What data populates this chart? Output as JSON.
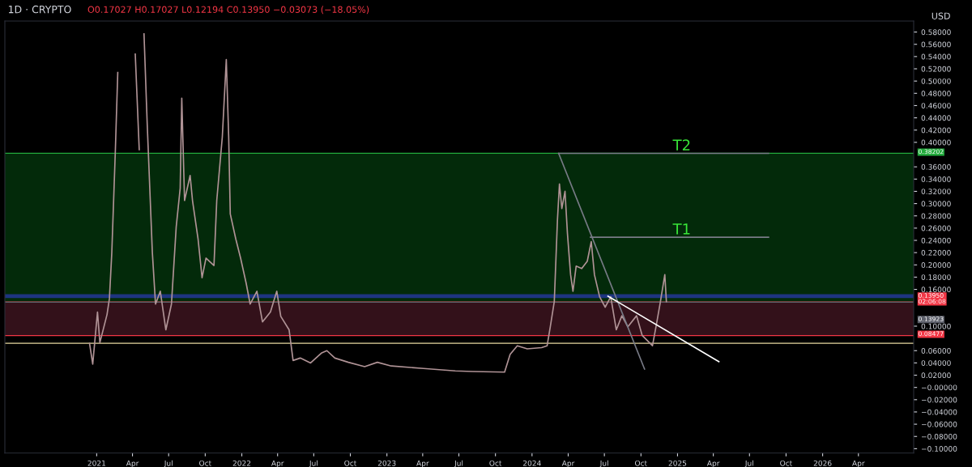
{
  "chart_data": {
    "type": "line",
    "title": "1D · CRYPTO",
    "subtitle": "O0.17027 H0.17027 L0.12194 C0.13950 −0.03073 (−18.05%)",
    "ylabel": "USD",
    "series": [
      {
        "color": "#b09396",
        "x": [
          "2020-12-14",
          "2020-12-22",
          "2021-01-03",
          "2021-01-09",
          "2021-01-27",
          "2021-02-02",
          "2021-02-08",
          "2021-02-17",
          "2021-02-23",
          "2021-03-01",
          "2021-04-08",
          "2021-04-18",
          "2021-04-24",
          "2021-04-30",
          "2021-05-08",
          "2021-05-21",
          "2021-05-29",
          "2021-06-10",
          "2021-06-24",
          "2021-07-08",
          "2021-07-20",
          "2021-07-30",
          "2021-08-03",
          "2021-08-10",
          "2021-08-24",
          "2021-08-30",
          "2021-09-13",
          "2021-09-23",
          "2021-10-03",
          "2021-10-23",
          "2021-10-30",
          "2021-11-13",
          "2021-11-23",
          "2021-11-29",
          "2021-12-03",
          "2021-12-17",
          "2021-12-29",
          "2022-01-12",
          "2022-01-22",
          "2022-02-08",
          "2022-02-22",
          "2022-03-14",
          "2022-03-30",
          "2022-04-09",
          "2022-04-30",
          "2022-05-10",
          "2022-05-28",
          "2022-06-23",
          "2022-07-20",
          "2022-08-03",
          "2022-08-23",
          "2022-09-26",
          "2022-11-06",
          "2022-12-08",
          "2023-01-12",
          "2023-04-03",
          "2023-06-22",
          "2023-08-04",
          "2023-10-24",
          "2023-11-07",
          "2023-11-25",
          "2023-12-20",
          "2024-01-25",
          "2024-02-08",
          "2024-02-16",
          "2024-02-26",
          "2024-03-05",
          "2024-03-10",
          "2024-03-16",
          "2024-03-24",
          "2024-03-30",
          "2024-04-07",
          "2024-04-13",
          "2024-04-21",
          "2024-05-05",
          "2024-05-19",
          "2024-05-29",
          "2024-06-06",
          "2024-06-19",
          "2024-07-03",
          "2024-07-17",
          "2024-07-31",
          "2024-08-14",
          "2024-08-29",
          "2024-09-20",
          "2024-10-04",
          "2024-10-30",
          "2024-11-09",
          "2024-11-19",
          "2024-11-30",
          "2024-12-04"
        ],
        "values": [
          0.072,
          0.038,
          0.123,
          0.073,
          0.119,
          0.145,
          0.22,
          0.388,
          0.514,
          null,
          0.544,
          0.388,
          null,
          0.577,
          0.431,
          0.22,
          0.136,
          0.157,
          0.094,
          0.136,
          0.262,
          0.325,
          0.472,
          0.305,
          0.346,
          0.305,
          0.242,
          0.179,
          0.211,
          0.199,
          0.305,
          0.409,
          0.535,
          0.409,
          0.283,
          0.242,
          0.211,
          0.17,
          0.136,
          0.157,
          0.107,
          0.123,
          0.157,
          0.116,
          0.094,
          0.044,
          0.048,
          0.04,
          0.056,
          0.06,
          0.048,
          0.041,
          0.034,
          0.041,
          0.035,
          0.031,
          0.027,
          0.026,
          0.025,
          0.054,
          0.068,
          0.063,
          0.065,
          0.068,
          0.099,
          0.14,
          0.274,
          0.332,
          0.292,
          0.32,
          0.252,
          0.184,
          0.157,
          0.198,
          0.194,
          0.206,
          0.238,
          0.184,
          0.148,
          0.131,
          0.148,
          0.094,
          0.117,
          0.099,
          0.117,
          0.085,
          0.068,
          0.103,
          0.14,
          0.184,
          0.14
        ]
      },
      {
        "type": "line",
        "color": "#787b86",
        "x": [
          "2024-03-08",
          "2024-10-10"
        ],
        "values": [
          0.382,
          0.03
        ]
      },
      {
        "type": "line",
        "color": "#ffffff",
        "x": [
          "2024-07-10",
          "2025-04-15"
        ],
        "values": [
          0.149,
          0.042
        ]
      },
      {
        "type": "line",
        "color": "#787b86",
        "x": [
          "2024-03-08",
          "2025-08-18"
        ],
        "values": [
          0.382,
          0.382
        ]
      },
      {
        "type": "line",
        "color": "#787b86",
        "x": [
          "2024-05-27",
          "2025-08-18"
        ],
        "values": [
          0.245,
          0.245
        ]
      }
    ],
    "bands": [
      {
        "axis": "y",
        "from": 0.13923,
        "to": 0.38202,
        "color": "#032a0a"
      },
      {
        "axis": "y",
        "from": 0.08477,
        "to": 0.13923,
        "color": "#33111a"
      },
      {
        "axis": "y",
        "from": 0.146,
        "to": 0.152,
        "color": "#1e3580"
      }
    ],
    "ref_lines": [
      {
        "axis": "y",
        "value": 0.072,
        "color": "#e8d9a0"
      },
      {
        "axis": "y",
        "value": 0.38202,
        "label": "0.38202",
        "color": "#22ab3c"
      },
      {
        "axis": "y",
        "value": 0.1395,
        "label": "0.13950\n02:06:08",
        "color": "#f23645"
      },
      {
        "axis": "y",
        "value": 0.13923,
        "label": "0.13923",
        "color": "#5d606b"
      },
      {
        "axis": "y",
        "value": 0.08477,
        "label": "0.08477",
        "color": "#f23645"
      }
    ],
    "annotations": [
      {
        "text": "T2",
        "x": "2024-12-20",
        "y": 0.382
      },
      {
        "text": "T1",
        "x": "2024-12-20",
        "y": 0.245
      }
    ],
    "xlim": [
      "2020-05-15",
      "2026-08-18"
    ],
    "xticks": [
      {
        "value": "2021-01-01",
        "label": "2021"
      },
      {
        "value": "2021-04-01",
        "label": "Apr"
      },
      {
        "value": "2021-07-01",
        "label": "Jul"
      },
      {
        "value": "2021-10-01",
        "label": "Oct"
      },
      {
        "value": "2022-01-01",
        "label": "2022"
      },
      {
        "value": "2022-04-01",
        "label": "Apr"
      },
      {
        "value": "2022-07-01",
        "label": "Jul"
      },
      {
        "value": "2022-10-01",
        "label": "Oct"
      },
      {
        "value": "2023-01-01",
        "label": "2023"
      },
      {
        "value": "2023-04-01",
        "label": "Apr"
      },
      {
        "value": "2023-07-01",
        "label": "Jul"
      },
      {
        "value": "2023-10-01",
        "label": "Oct"
      },
      {
        "value": "2024-01-01",
        "label": "2024"
      },
      {
        "value": "2024-04-01",
        "label": "Apr"
      },
      {
        "value": "2024-07-01",
        "label": "Jul"
      },
      {
        "value": "2024-10-01",
        "label": "Oct"
      },
      {
        "value": "2025-01-01",
        "label": "2025"
      },
      {
        "value": "2025-04-01",
        "label": "Apr"
      },
      {
        "value": "2025-07-01",
        "label": "Jul"
      },
      {
        "value": "2025-10-01",
        "label": "Oct"
      },
      {
        "value": "2026-01-01",
        "label": "2026"
      },
      {
        "value": "2026-04-01",
        "label": "Apr"
      }
    ],
    "ylim": [
      -0.107,
      0.598
    ],
    "yticks": [
      {
        "value": 0.58,
        "label": "0.58000"
      },
      {
        "value": 0.56,
        "label": "0.56000"
      },
      {
        "value": 0.54,
        "label": "0.54000"
      },
      {
        "value": 0.52,
        "label": "0.52000"
      },
      {
        "value": 0.5,
        "label": "0.50000"
      },
      {
        "value": 0.48,
        "label": "0.48000"
      },
      {
        "value": 0.46,
        "label": "0.46000"
      },
      {
        "value": 0.44,
        "label": "0.44000"
      },
      {
        "value": 0.42,
        "label": "0.42000"
      },
      {
        "value": 0.4,
        "label": "0.40000"
      },
      {
        "value": 0.36,
        "label": "0.36000"
      },
      {
        "value": 0.34,
        "label": "0.34000"
      },
      {
        "value": 0.32,
        "label": "0.32000"
      },
      {
        "value": 0.3,
        "label": "0.30000"
      },
      {
        "value": 0.28,
        "label": "0.28000"
      },
      {
        "value": 0.26,
        "label": "0.26000"
      },
      {
        "value": 0.24,
        "label": "0.24000"
      },
      {
        "value": 0.22,
        "label": "0.22000"
      },
      {
        "value": 0.2,
        "label": "0.20000"
      },
      {
        "value": 0.18,
        "label": "0.18000"
      },
      {
        "value": 0.16,
        "label": "0.16000"
      },
      {
        "value": 0.1,
        "label": "0.10000"
      },
      {
        "value": 0.06,
        "label": "0.06000"
      },
      {
        "value": 0.04,
        "label": "0.04000"
      },
      {
        "value": 0.02,
        "label": "0.02000"
      },
      {
        "value": 0,
        "label": "−0.00000"
      },
      {
        "value": -0.02,
        "label": "−0.02000"
      },
      {
        "value": -0.04,
        "label": "−0.04000"
      },
      {
        "value": -0.06,
        "label": "−0.06000"
      },
      {
        "value": -0.08,
        "label": "−0.08000"
      },
      {
        "value": -0.1,
        "label": "−0.10000"
      }
    ]
  }
}
